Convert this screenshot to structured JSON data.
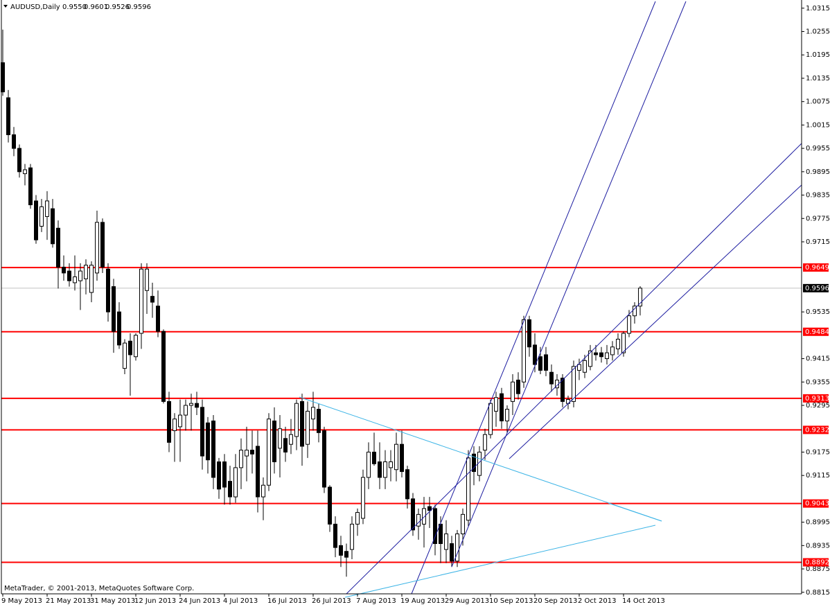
{
  "chart_data": {
    "type": "candlestick",
    "title": "AUDUSD,Daily",
    "title_values": [
      "0.9550",
      "0.9601",
      "0.9526",
      "0.9596"
    ],
    "footer": "MetaTrader, © 2001-2013, MetaQuotes Software Corp.",
    "categories": [
      "9 May 2013",
      null,
      null,
      null,
      null,
      null,
      null,
      null,
      "21 May 2013",
      null,
      null,
      null,
      null,
      null,
      null,
      null,
      "31 May 2013",
      null,
      null,
      null,
      null,
      null,
      null,
      null,
      "12 Jun 2013",
      null,
      null,
      null,
      null,
      null,
      null,
      null,
      "24 Jun 2013",
      null,
      null,
      null,
      null,
      null,
      null,
      null,
      "4 Jul 2013",
      null,
      null,
      null,
      null,
      null,
      null,
      null,
      "16 Jul 2013",
      null,
      null,
      null,
      null,
      null,
      null,
      null,
      "26 Jul 2013",
      null,
      null,
      null,
      null,
      null,
      null,
      null,
      "7 Aug 2013",
      null,
      null,
      null,
      null,
      null,
      null,
      null,
      "19 Aug 2013",
      null,
      null,
      null,
      null,
      null,
      null,
      null,
      "29 Aug 2013",
      null,
      null,
      null,
      null,
      null,
      null,
      null,
      "10 Sep 2013",
      null,
      null,
      null,
      null,
      null,
      null,
      null,
      "20 Sep 2013",
      null,
      null,
      null,
      null,
      null,
      null,
      null,
      "2 Oct 2013",
      null,
      null,
      null,
      null,
      null,
      null,
      null,
      "14 Oct 2013",
      null,
      null,
      null
    ],
    "open": [
      1.0175,
      1.0085,
      0.999,
      0.9955,
      0.989,
      0.9905,
      0.982,
      0.9755,
      0.978,
      0.98,
      0.975,
      0.965,
      0.964,
      0.961,
      0.9615,
      0.962,
      0.9585,
      0.9635,
      0.9765,
      0.9645,
      0.96,
      0.9535,
      0.939,
      0.946,
      0.942,
      0.948,
      0.959,
      0.9575,
      0.955,
      0.9485,
      0.9305,
      0.923,
      0.924,
      0.927,
      0.9295,
      0.93,
      0.929,
      0.925,
      0.9255,
      0.915,
      0.915,
      0.91,
      0.906,
      0.9135,
      0.9165,
      0.918,
      0.919,
      0.906,
      0.909,
      0.9255,
      0.9185,
      0.921,
      0.9195,
      0.9215,
      0.9305,
      0.9195,
      0.926,
      0.9285,
      0.923,
      0.9085,
      0.899,
      0.8935,
      0.892,
      0.8925,
      0.899,
      0.9005,
      0.911,
      0.9175,
      0.915,
      0.911,
      0.9135,
      0.913,
      0.9195,
      0.913,
      0.9055,
      0.8985,
      0.899,
      0.9035,
      0.903,
      0.899,
      0.8925,
      0.894,
      0.8895,
      0.8965,
      0.9,
      0.917,
      0.9115,
      0.918,
      0.922,
      0.928,
      0.9325,
      0.9255,
      0.9305,
      0.936,
      0.9355,
      0.9515,
      0.945,
      0.942,
      0.9425,
      0.938,
      0.934,
      0.9365,
      0.93,
      0.9305,
      0.9385,
      0.938,
      0.9395,
      0.943,
      0.943,
      0.9415,
      0.9425,
      0.944,
      0.943,
      0.948,
      0.9525,
      0.955
    ],
    "high": [
      1.026,
      1.0105,
      1.001,
      0.9965,
      0.9915,
      0.9915,
      0.9835,
      0.9825,
      0.9845,
      0.9825,
      0.977,
      0.968,
      0.966,
      0.968,
      0.966,
      0.967,
      0.9665,
      0.9795,
      0.9775,
      0.966,
      0.962,
      0.956,
      0.9465,
      0.948,
      0.948,
      0.966,
      0.966,
      0.961,
      0.959,
      0.949,
      0.933,
      0.9275,
      0.931,
      0.931,
      0.9325,
      0.933,
      0.931,
      0.9265,
      0.927,
      0.916,
      0.917,
      0.914,
      0.917,
      0.921,
      0.924,
      0.923,
      0.923,
      0.911,
      0.9275,
      0.929,
      0.927,
      0.924,
      0.926,
      0.931,
      0.9325,
      0.9305,
      0.933,
      0.93,
      0.924,
      0.909,
      0.901,
      0.896,
      0.894,
      0.901,
      0.903,
      0.913,
      0.92,
      0.9225,
      0.92,
      0.918,
      0.918,
      0.9225,
      0.923,
      0.914,
      0.907,
      0.903,
      0.906,
      0.906,
      0.904,
      0.901,
      0.9,
      0.896,
      0.8975,
      0.903,
      0.918,
      0.919,
      0.919,
      0.9235,
      0.931,
      0.933,
      0.934,
      0.9295,
      0.9375,
      0.938,
      0.9525,
      0.9525,
      0.948,
      0.9445,
      0.9445,
      0.94,
      0.9375,
      0.9375,
      0.932,
      0.941,
      0.9415,
      0.9425,
      0.945,
      0.945,
      0.9445,
      0.945,
      0.946,
      0.948,
      0.9485,
      0.954,
      0.956,
      0.9601
    ],
    "low": [
      1.009,
      0.997,
      0.9935,
      0.988,
      0.986,
      0.98,
      0.971,
      0.974,
      0.972,
      0.97,
      0.9595,
      0.9615,
      0.96,
      0.959,
      0.954,
      0.958,
      0.956,
      0.9615,
      0.9635,
      0.951,
      0.943,
      0.944,
      0.9375,
      0.932,
      0.941,
      0.944,
      0.953,
      0.952,
      0.947,
      0.93,
      0.9175,
      0.915,
      0.915,
      0.923,
      0.923,
      0.927,
      0.913,
      0.912,
      0.908,
      0.9055,
      0.904,
      0.904,
      0.9045,
      0.908,
      0.91,
      0.912,
      0.902,
      0.9,
      0.9075,
      0.912,
      0.911,
      0.915,
      0.917,
      0.918,
      0.914,
      0.916,
      0.923,
      0.92,
      0.907,
      0.897,
      0.8905,
      0.888,
      0.8855,
      0.89,
      0.896,
      0.899,
      0.908,
      0.914,
      0.908,
      0.908,
      0.91,
      0.91,
      0.911,
      0.903,
      0.896,
      0.895,
      0.893,
      0.898,
      0.891,
      0.889,
      0.889,
      0.888,
      0.888,
      0.8935,
      0.8985,
      0.909,
      0.91,
      0.9155,
      0.921,
      0.924,
      0.9235,
      0.9225,
      0.927,
      0.931,
      0.934,
      0.942,
      0.938,
      0.9375,
      0.937,
      0.933,
      0.932,
      0.929,
      0.9285,
      0.929,
      0.936,
      0.9365,
      0.9385,
      0.941,
      0.9405,
      0.94,
      0.941,
      0.9425,
      0.942,
      0.947,
      0.9505,
      0.9526
    ],
    "close": [
      1.01,
      0.999,
      0.9955,
      0.9895,
      0.99,
      0.981,
      0.972,
      0.9805,
      0.982,
      0.971,
      0.965,
      0.9635,
      0.9615,
      0.9625,
      0.964,
      0.9655,
      0.9655,
      0.9765,
      0.965,
      0.9535,
      0.9485,
      0.945,
      0.9455,
      0.9425,
      0.9475,
      0.9645,
      0.9645,
      0.956,
      0.9485,
      0.9305,
      0.92,
      0.926,
      0.927,
      0.9295,
      0.93,
      0.929,
      0.9165,
      0.9155,
      0.911,
      0.908,
      0.9085,
      0.906,
      0.9135,
      0.918,
      0.918,
      0.917,
      0.906,
      0.909,
      0.926,
      0.915,
      0.9235,
      0.9175,
      0.922,
      0.93,
      0.919,
      0.928,
      0.929,
      0.9225,
      0.9085,
      0.899,
      0.893,
      0.891,
      0.8905,
      0.899,
      0.902,
      0.911,
      0.9175,
      0.9145,
      0.911,
      0.915,
      0.915,
      0.9195,
      0.9125,
      0.9055,
      0.8975,
      0.9015,
      0.903,
      0.9025,
      0.894,
      0.894,
      0.8965,
      0.8895,
      0.8965,
      0.9015,
      0.916,
      0.9125,
      0.9175,
      0.922,
      0.93,
      0.9315,
      0.9255,
      0.9285,
      0.9355,
      0.9325,
      0.9515,
      0.9445,
      0.94,
      0.9385,
      0.9385,
      0.935,
      0.936,
      0.9305,
      0.931,
      0.9395,
      0.94,
      0.941,
      0.9435,
      0.9425,
      0.942,
      0.943,
      0.9445,
      0.9465,
      0.948,
      0.9525,
      0.955,
      0.9596
    ],
    "up_color": "#ffffff",
    "down_color": "#000000",
    "line_color": "#000000",
    "ylim": [
      0.8811,
      1.0336
    ],
    "yticks": [
      1.0315,
      1.0255,
      1.0195,
      1.0135,
      1.0075,
      1.0015,
      0.9955,
      0.9895,
      0.9835,
      0.9775,
      0.9715,
      0.9535,
      0.9415,
      0.9355,
      0.9295,
      0.9175,
      0.9115,
      0.8995,
      0.8935,
      0.8875,
      0.8815
    ],
    "levels": [
      {
        "value": 0.9649,
        "color": "#ff0000"
      },
      {
        "value": 0.9484,
        "color": "#ff0000"
      },
      {
        "value": 0.9313,
        "color": "#ff0000"
      },
      {
        "value": 0.9232,
        "color": "#ff0000"
      },
      {
        "value": 0.9043,
        "color": "#ff0000"
      },
      {
        "value": 0.8892,
        "color": "#ff0000"
      }
    ],
    "current_price": 0.9596,
    "current_price_color": "#c0c0c0"
  }
}
